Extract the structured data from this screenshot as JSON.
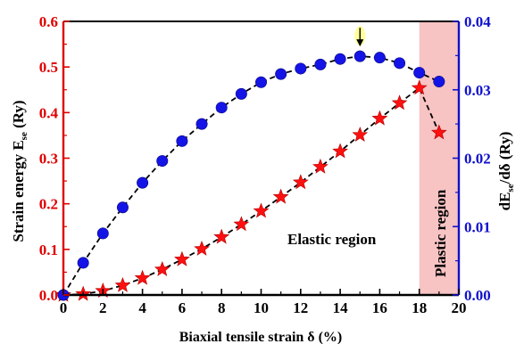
{
  "chart_data": {
    "type": "scatter",
    "xlabel": "Biaxial tensile strain  δ (%)",
    "ylabel_left": "Strain energy E",
    "ylabel_left_sub": "se",
    "ylabel_left_unit": " (Ry)",
    "ylabel_right": "dE",
    "ylabel_right_sub": "se",
    "ylabel_right_unit": "/dδ (Ry)",
    "xlim": [
      0,
      20
    ],
    "ylim_left": [
      0,
      0.6
    ],
    "ylim_right": [
      0,
      0.04
    ],
    "x_ticks": [
      "0",
      "2",
      "4",
      "6",
      "8",
      "10",
      "12",
      "14",
      "16",
      "18",
      "20"
    ],
    "y_left_ticks": [
      "0.0",
      "0.1",
      "0.2",
      "0.3",
      "0.4",
      "0.5",
      "0.6"
    ],
    "y_right_ticks": [
      "0.00",
      "0.01",
      "0.02",
      "0.03",
      "0.04"
    ],
    "grid": false,
    "series": [
      {
        "axis": "left",
        "marker": "star",
        "color": "#ff1010",
        "line": "dashed",
        "x": [
          0,
          1,
          2,
          3,
          4,
          5,
          6,
          7,
          8,
          9,
          10,
          11,
          12,
          13,
          14,
          15,
          16,
          17,
          18,
          19
        ],
        "values": [
          0.0,
          0.002,
          0.009,
          0.021,
          0.037,
          0.056,
          0.078,
          0.101,
          0.127,
          0.155,
          0.184,
          0.215,
          0.247,
          0.281,
          0.315,
          0.351,
          0.387,
          0.421,
          0.454,
          0.356
        ]
      },
      {
        "axis": "right",
        "marker": "circle",
        "color": "#1414e6",
        "line": "dashed",
        "x": [
          0,
          1,
          2,
          3,
          4,
          5,
          6,
          7,
          8,
          9,
          10,
          11,
          12,
          13,
          14,
          15,
          16,
          17,
          18,
          19
        ],
        "values": [
          0.0,
          0.0047,
          0.009,
          0.0128,
          0.0164,
          0.0196,
          0.0225,
          0.025,
          0.0274,
          0.0294,
          0.0311,
          0.0323,
          0.0331,
          0.0337,
          0.0345,
          0.0349,
          0.0347,
          0.0339,
          0.0325,
          0.0312
        ]
      }
    ],
    "annotations": {
      "elastic_label": "Elastic region",
      "plastic_label": "Plastic region",
      "plastic_range": [
        18,
        20
      ],
      "plastic_color": "#f7c3c3",
      "arrow_at_x": 15,
      "arrow_color": "#ffff99"
    },
    "colors": {
      "left_axis": "#e00000",
      "right_axis": "#1010cc",
      "bottom_axis": "#000000"
    }
  }
}
